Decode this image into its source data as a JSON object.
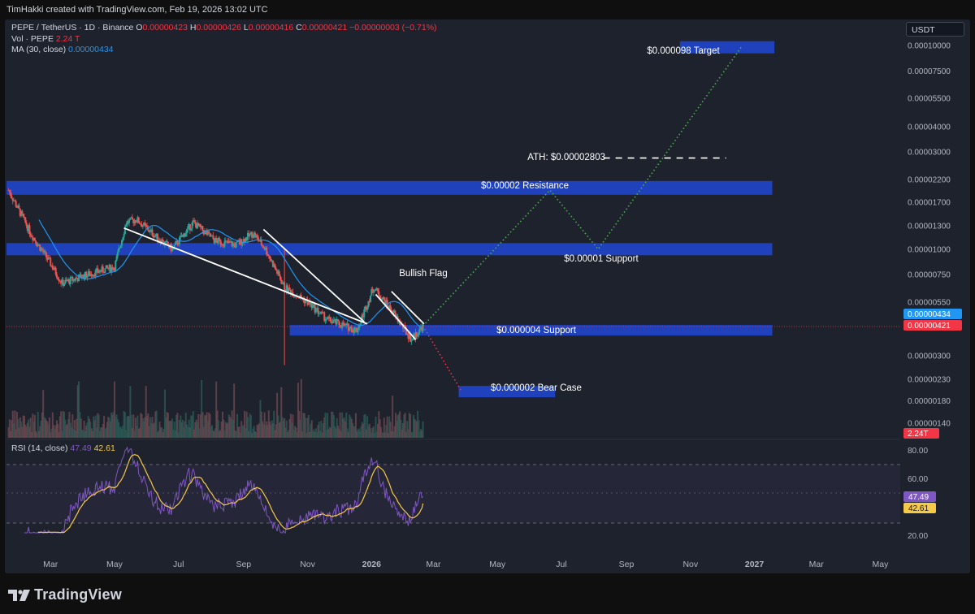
{
  "header": {
    "attribution": "TimHakki created with TradingView.com, Feb 19, 2026 13:02 UTC"
  },
  "legend": {
    "symbol": "PEPE / TetherUS · 1D · Binance",
    "o_label": "O",
    "o_value": "0.00000423",
    "h_label": "H",
    "h_value": "0.00000426",
    "l_label": "L",
    "l_value": "0.00000416",
    "c_label": "C",
    "c_value": "0.00000421",
    "change": "−0.00000003 (−0.71%)",
    "vol_label": "Vol · PEPE",
    "vol_value": "2.24 T",
    "ma_label": "MA (30, close)",
    "ma_value": "0.00000434"
  },
  "currency": "USDT",
  "rsi_legend": {
    "label": "RSI (14, close)",
    "rsi_value": "47.49",
    "ma_value": "42.61"
  },
  "colors": {
    "background": "#1e222d",
    "zone": "#1f44c8",
    "up": "#26a69a",
    "down": "#ef5350",
    "ma": "#2196f3",
    "projection": "#4caf50",
    "bear_projection": "#f23645",
    "rsi": "#7e57c2",
    "rsi_ma": "#f7c948",
    "volume": "#6b4950"
  },
  "footer": {
    "brand": "TradingView",
    "logo_icon": "tradingview-logo-icon"
  },
  "chart_data": [
    {
      "type": "candlestick",
      "title": "PEPE / TetherUS · 1D · Binance",
      "y_scale": "log",
      "y_ticks": [
        "0.00010000",
        "0.00007500",
        "0.00005500",
        "0.00004000",
        "0.00003000",
        "0.00002200",
        "0.00001700",
        "0.00001300",
        "0.00001000",
        "0.00000750",
        "0.00000550",
        "0.00000300",
        "0.00000230",
        "0.00000180",
        "0.00000140"
      ],
      "x_ticks": [
        "Mar",
        "May",
        "Jul",
        "Sep",
        "Nov",
        "2026",
        "Mar",
        "May",
        "Jul",
        "Sep",
        "Nov",
        "2027",
        "Mar",
        "May"
      ],
      "price_path": [
        {
          "date": "2025-01-20",
          "price": 1.95e-05
        },
        {
          "date": "2025-02-10",
          "price": 1.2e-05
        },
        {
          "date": "2025-03-01",
          "price": 8.5e-06
        },
        {
          "date": "2025-03-12",
          "price": 6.8e-06
        },
        {
          "date": "2025-04-05",
          "price": 7.5e-06
        },
        {
          "date": "2025-05-01",
          "price": 8.2e-06
        },
        {
          "date": "2025-05-12",
          "price": 1.35e-05
        },
        {
          "date": "2025-05-22",
          "price": 1.4e-05
        },
        {
          "date": "2025-06-10",
          "price": 1.15e-05
        },
        {
          "date": "2025-06-25",
          "price": 1e-05
        },
        {
          "date": "2025-07-15",
          "price": 1.35e-05
        },
        {
          "date": "2025-08-05",
          "price": 1.1e-05
        },
        {
          "date": "2025-08-25",
          "price": 1.05e-05
        },
        {
          "date": "2025-09-10",
          "price": 1.2e-05
        },
        {
          "date": "2025-09-22",
          "price": 1e-05
        },
        {
          "date": "2025-10-10",
          "price": 6.5e-06
        },
        {
          "date": "2025-11-01",
          "price": 5.5e-06
        },
        {
          "date": "2025-11-20",
          "price": 4.5e-06
        },
        {
          "date": "2025-12-18",
          "price": 4e-06
        },
        {
          "date": "2026-01-03",
          "price": 6.5e-06
        },
        {
          "date": "2026-01-20",
          "price": 5e-06
        },
        {
          "date": "2026-02-08",
          "price": 3.6e-06
        },
        {
          "date": "2026-02-19",
          "price": 4.2e-06
        }
      ],
      "last_price": "0.00000421",
      "ma30_last": "0.00000434",
      "volume_last": "2.24T",
      "annotations": [
        {
          "text": "$0.000098 Target",
          "kind": "zone",
          "price": 9.8e-05
        },
        {
          "text": "ATH: $0.00002803",
          "kind": "dashed-line",
          "price": 2.803e-05
        },
        {
          "text": "$0.00002 Resistance",
          "kind": "zone",
          "price": 2e-05
        },
        {
          "text": "$0.00001 Support",
          "kind": "zone",
          "price": 1e-05
        },
        {
          "text": "$0.000004 Support",
          "kind": "zone",
          "price": 4e-06
        },
        {
          "text": "$0.000002 Bear Case",
          "kind": "zone",
          "price": 2e-06
        },
        {
          "text": "Bullish Flag",
          "kind": "label"
        }
      ],
      "projection_path": [
        {
          "date": "2026-02-19",
          "price": 4.2e-06
        },
        {
          "date": "2026-06-20",
          "price": 1.95e-05
        },
        {
          "date": "2026-08-05",
          "price": 1e-05
        },
        {
          "date": "2026-12-20",
          "price": 9.9e-05
        }
      ],
      "bear_projection": [
        {
          "date": "2026-02-19",
          "price": 4.2e-06
        },
        {
          "date": "2026-03-28",
          "price": 2e-06
        }
      ]
    },
    {
      "type": "line",
      "title": "RSI (14, close)",
      "y_ticks": [
        "80.00",
        "60.00",
        "20.00"
      ],
      "ylim": [
        20,
        85
      ],
      "bands": [
        70,
        50,
        30
      ],
      "series": [
        {
          "name": "RSI",
          "last": 47.49
        },
        {
          "name": "RSI MA",
          "last": 42.61
        }
      ]
    }
  ]
}
